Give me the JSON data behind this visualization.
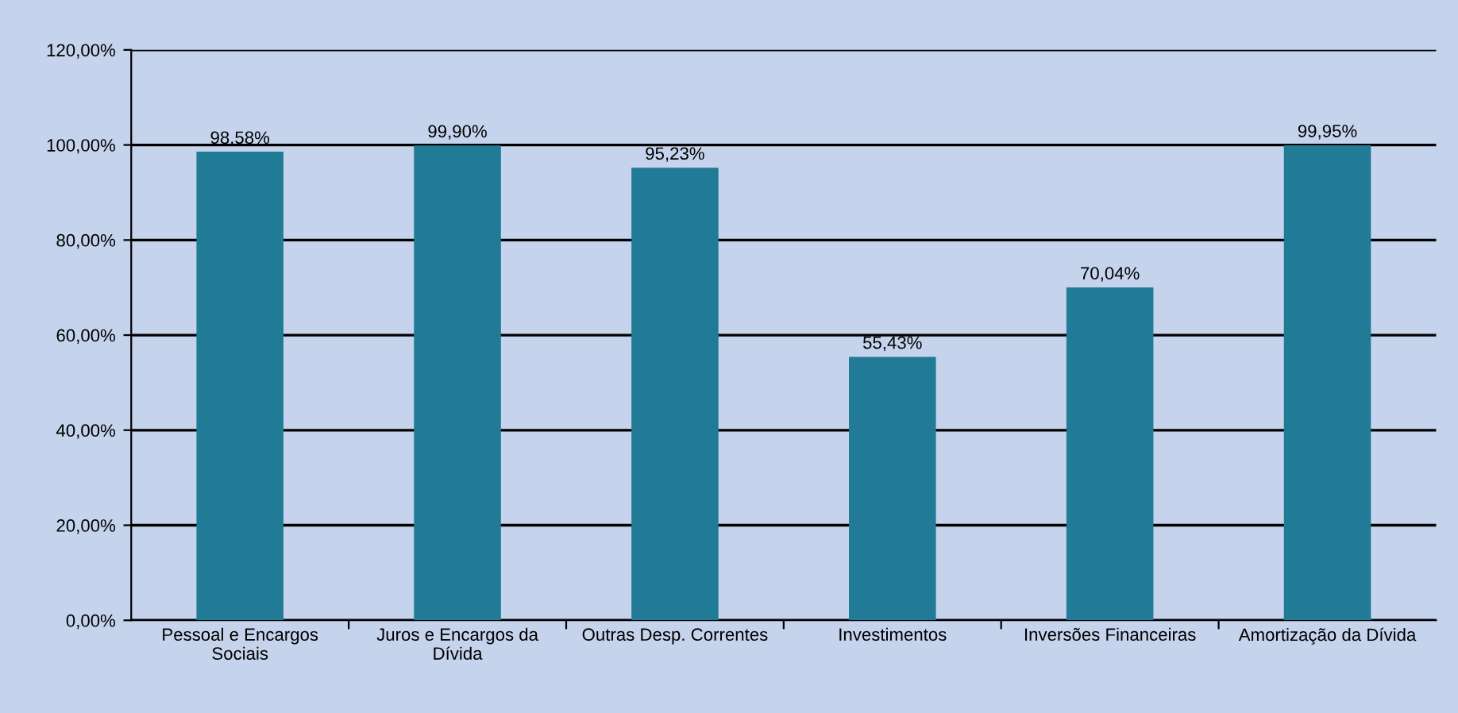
{
  "chart_data": {
    "type": "bar",
    "categories": [
      "Pessoal e Encargos\nSociais",
      "Juros e Encargos da\nDívida",
      "Outras Desp. Correntes",
      "Investimentos",
      "Inversões Financeiras",
      "Amortização da Dívida"
    ],
    "values": [
      98.58,
      99.9,
      95.23,
      55.43,
      70.04,
      99.95
    ],
    "value_labels": [
      "98,58%",
      "99,90%",
      "95,23%",
      "55,43%",
      "70,04%",
      "99,95%"
    ],
    "color": "#217b96",
    "ylim": [
      0,
      120
    ],
    "yticks": [
      {
        "value": 0,
        "label": "0,00%"
      },
      {
        "value": 20,
        "label": "20,00%"
      },
      {
        "value": 40,
        "label": "40,00%"
      },
      {
        "value": 60,
        "label": "60,00%"
      },
      {
        "value": 80,
        "label": "80,00%"
      },
      {
        "value": 100,
        "label": "100,00%"
      },
      {
        "value": 120,
        "label": "120,00%"
      }
    ],
    "grid": "y"
  }
}
